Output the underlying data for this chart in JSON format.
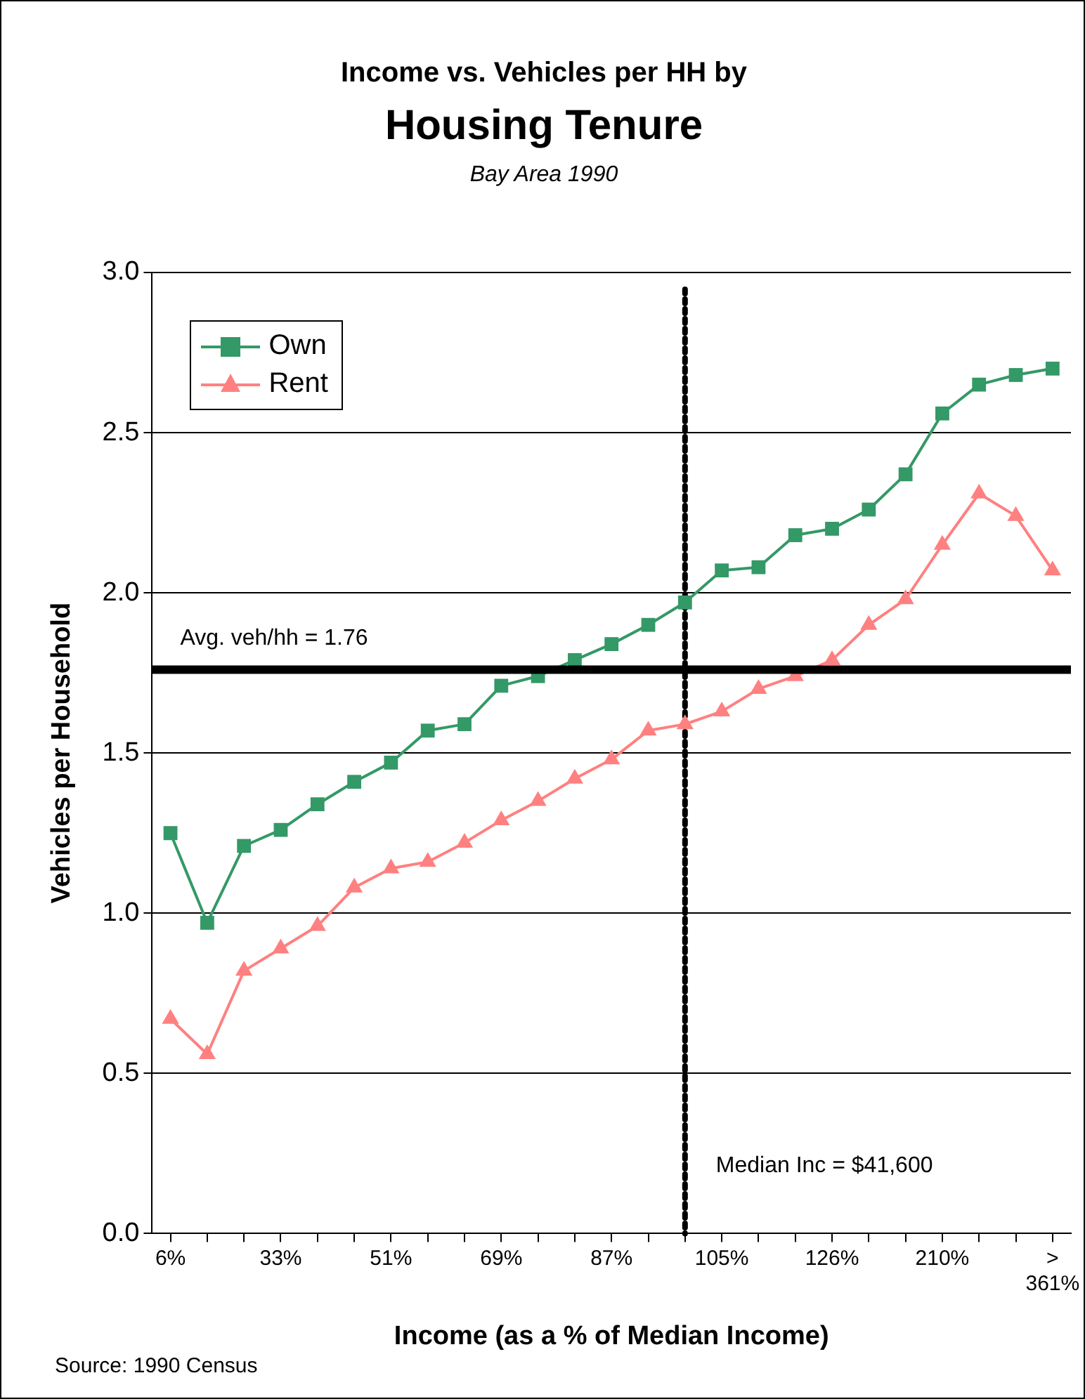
{
  "chart_data": {
    "type": "line",
    "title": "Income vs. Vehicles per HH by\nHousing Tenure",
    "subtitle": "Bay Area 1990",
    "xlabel": "Income (as a % of Median Income)",
    "ylabel": "Vehicles per Household",
    "categories": [
      "6%",
      null,
      null,
      "33%",
      null,
      null,
      "51%",
      null,
      null,
      "69%",
      null,
      null,
      "87%",
      null,
      null,
      "105%",
      null,
      null,
      "126%",
      null,
      null,
      "210%",
      null,
      null,
      "> 361%"
    ],
    "ylim": [
      0,
      3
    ],
    "yticks": [
      {
        "value": 0,
        "label": "0.0"
      },
      {
        "value": 0.5,
        "label": "0.5"
      },
      {
        "value": 1,
        "label": "1.0"
      },
      {
        "value": 1.5,
        "label": "1.5"
      },
      {
        "value": 2,
        "label": "2.0"
      },
      {
        "value": 2.5,
        "label": "2.5"
      },
      {
        "value": 3,
        "label": "3.0"
      }
    ],
    "series": [
      {
        "name": "Own",
        "color": "#339966",
        "marker": "square",
        "values": [
          1.25,
          0.97,
          1.21,
          1.26,
          1.34,
          1.41,
          1.47,
          1.57,
          1.59,
          1.71,
          1.74,
          1.79,
          1.84,
          1.9,
          1.97,
          2.07,
          2.08,
          2.18,
          2.2,
          2.26,
          2.37,
          2.56,
          2.65,
          2.68,
          2.7
        ]
      },
      {
        "name": "Rent",
        "color": "#ff8080",
        "marker": "triangle",
        "values": [
          0.67,
          0.56,
          0.82,
          0.89,
          0.96,
          1.08,
          1.14,
          1.16,
          1.22,
          1.29,
          1.35,
          1.42,
          1.48,
          1.57,
          1.59,
          1.63,
          1.7,
          1.74,
          1.79,
          1.9,
          1.98,
          2.15,
          2.31,
          2.24,
          2.07
        ]
      }
    ],
    "ref_lines": [
      {
        "axis": "y",
        "value": 1.76,
        "label": "Avg. veh/hh = 1.76",
        "color": "#000000",
        "line_style": "solid"
      }
    ],
    "annotations": [
      "Source: 1990 Census",
      "Median Inc = $41,600"
    ],
    "grid": "y",
    "legend": "top left",
    "line_style": "solid"
  }
}
